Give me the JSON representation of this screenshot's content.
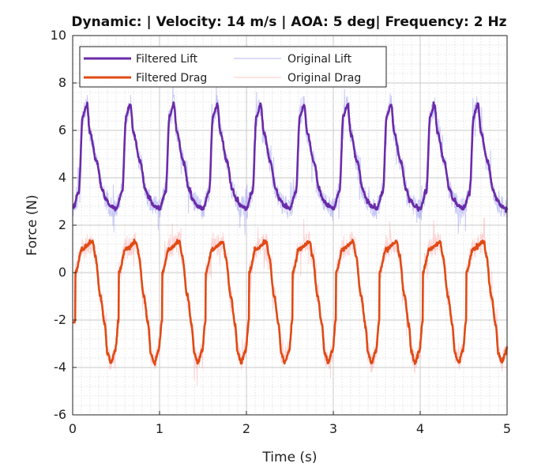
{
  "chart_data": {
    "type": "line",
    "title": "Dynamic: | Velocity: 14 m/s | AOA: 5 deg| Frequency: 2 Hz",
    "xlabel": "Time (s)",
    "ylabel": "Force (N)",
    "xlim": [
      0,
      5
    ],
    "ylim": [
      -6,
      10
    ],
    "xticks": [
      0,
      1,
      2,
      3,
      4,
      5
    ],
    "yticks": [
      -6,
      -4,
      -2,
      0,
      2,
      4,
      6,
      8,
      10
    ],
    "xtick_labels": [
      "0",
      "1",
      "2",
      "3",
      "4",
      "5"
    ],
    "ytick_labels": [
      "-6",
      "-4",
      "-2",
      "0",
      "2",
      "4",
      "6",
      "8",
      "10"
    ],
    "grid": true,
    "minor_grid": true,
    "legend_position": "top-left",
    "series": [
      {
        "name": "Filtered Lift",
        "color": "#6a2ba8",
        "kind": "filtered",
        "signal": {
          "base": 2.7,
          "peak": 7.1,
          "mid": 3.1,
          "period": 0.5,
          "peak_phase": 0.33
        }
      },
      {
        "name": "Original Lift",
        "color": "#6666ee",
        "kind": "original",
        "signal": {
          "noise": 0.9
        }
      },
      {
        "name": "Filtered Drag",
        "color": "#e04a14",
        "kind": "filtered",
        "signal": {
          "trough": -3.8,
          "peak": 1.3,
          "period": 0.5,
          "peak_phase": 0.2,
          "start_value": -2.1
        }
      },
      {
        "name": "Original Drag",
        "color": "#ff8888",
        "kind": "original",
        "signal": {
          "noise": 0.9
        }
      }
    ]
  }
}
